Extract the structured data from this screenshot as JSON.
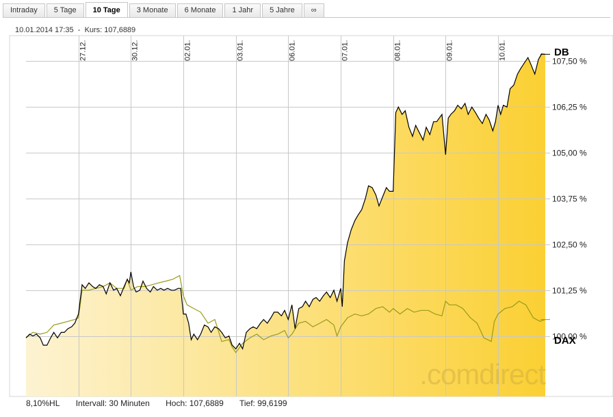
{
  "tabs": [
    {
      "label": "Intraday",
      "active": false
    },
    {
      "label": "5 Tage",
      "active": false
    },
    {
      "label": "10 Tage",
      "active": true
    },
    {
      "label": "3 Monate",
      "active": false
    },
    {
      "label": "6 Monate",
      "active": false
    },
    {
      "label": "1 Jahr",
      "active": false
    },
    {
      "label": "5 Jahre",
      "active": false
    },
    {
      "label": "∞",
      "active": false
    }
  ],
  "info": {
    "datetime": "10.01.2014 17:35",
    "separator": "-",
    "price": "Kurs: 107,6889"
  },
  "footer": {
    "hl": "8,10%HL",
    "interval": "Intervall: 30 Minuten",
    "high": "Hoch: 107,6889",
    "low": "Tief: 99,6199"
  },
  "watermark": ".comdirect",
  "colors": {
    "db_line": "#000000",
    "dax_line": "#9a9a1a",
    "fill_light": "#fdf3d2",
    "fill_dark": "#fbd033",
    "grid": "#c8c8c8"
  },
  "chart_data": {
    "type": "area",
    "title": "",
    "xlabel": "",
    "ylabel": "",
    "ylim": [
      98.35,
      108.2
    ],
    "yticks": [
      100.0,
      101.25,
      102.5,
      103.75,
      105.0,
      106.25,
      107.5
    ],
    "ytick_labels": [
      "100,00 %",
      "101,25 %",
      "102,50 %",
      "103,75 %",
      "105,00 %",
      "106,25 %",
      "107,50 %"
    ],
    "x_categories": [
      "27.12.",
      "30.12.",
      "02.01.",
      "03.01.",
      "06.01.",
      "07.01.",
      "08.01.",
      "09.01.",
      "10.01."
    ],
    "x_range": [
      -1.0,
      8.9
    ],
    "series": [
      {
        "name": "DB",
        "x": [
          -1.0,
          -0.93,
          -0.87,
          -0.8,
          -0.73,
          -0.67,
          -0.6,
          -0.53,
          -0.47,
          -0.4,
          -0.33,
          -0.27,
          -0.2,
          -0.13,
          -0.07,
          0.0,
          0.07,
          0.13,
          0.2,
          0.27,
          0.33,
          0.4,
          0.47,
          0.53,
          0.6,
          0.67,
          0.73,
          0.8,
          0.87,
          0.93,
          0.97,
          1.0,
          1.05,
          1.1,
          1.17,
          1.23,
          1.3,
          1.37,
          1.43,
          1.5,
          1.57,
          1.63,
          1.7,
          1.77,
          1.83,
          1.9,
          1.95,
          2.0,
          2.05,
          2.1,
          2.15,
          2.2,
          2.27,
          2.33,
          2.4,
          2.47,
          2.53,
          2.6,
          2.67,
          2.73,
          2.8,
          2.87,
          2.93,
          3.0,
          3.07,
          3.13,
          3.2,
          3.27,
          3.33,
          3.4,
          3.47,
          3.53,
          3.6,
          3.67,
          3.73,
          3.8,
          3.87,
          3.93,
          4.0,
          4.07,
          4.13,
          4.2,
          4.27,
          4.33,
          4.4,
          4.47,
          4.53,
          4.6,
          4.67,
          4.73,
          4.8,
          4.87,
          4.93,
          5.0,
          5.03,
          5.07,
          5.13,
          5.2,
          5.27,
          5.33,
          5.4,
          5.47,
          5.53,
          5.6,
          5.67,
          5.73,
          5.8,
          5.87,
          5.93,
          6.0,
          6.05,
          6.1,
          6.17,
          6.23,
          6.3,
          6.37,
          6.43,
          6.5,
          6.57,
          6.63,
          6.7,
          6.77,
          6.83,
          6.93,
          7.0,
          7.05,
          7.1,
          7.17,
          7.23,
          7.3,
          7.37,
          7.43,
          7.5,
          7.57,
          7.63,
          7.7,
          7.77,
          7.83,
          7.9,
          7.95,
          8.0,
          8.05,
          8.1,
          8.17,
          8.23,
          8.3,
          8.37,
          8.43,
          8.5,
          8.57,
          8.63,
          8.7,
          8.77,
          8.83,
          8.9
        ],
        "values": [
          99.95,
          100.05,
          100.0,
          100.05,
          99.95,
          99.75,
          99.75,
          99.95,
          100.1,
          99.95,
          100.1,
          100.1,
          100.2,
          100.25,
          100.35,
          100.6,
          101.4,
          101.3,
          101.45,
          101.35,
          101.3,
          101.4,
          101.35,
          101.15,
          101.45,
          101.25,
          101.3,
          101.1,
          101.35,
          101.55,
          101.45,
          101.75,
          101.35,
          101.2,
          101.25,
          101.5,
          101.3,
          101.2,
          101.35,
          101.25,
          101.3,
          101.25,
          101.3,
          101.25,
          101.25,
          101.3,
          101.3,
          100.6,
          100.6,
          100.35,
          99.9,
          100.05,
          99.9,
          100.05,
          100.3,
          100.25,
          100.1,
          100.25,
          100.2,
          100.1,
          99.95,
          100.0,
          99.75,
          99.65,
          99.8,
          99.65,
          100.1,
          100.2,
          100.25,
          100.2,
          100.35,
          100.45,
          100.35,
          100.5,
          100.65,
          100.65,
          100.55,
          100.7,
          100.45,
          100.85,
          100.2,
          100.75,
          100.8,
          100.95,
          100.8,
          101.0,
          101.05,
          100.95,
          101.1,
          101.2,
          101.05,
          101.25,
          100.95,
          101.3,
          100.8,
          102.05,
          102.55,
          102.9,
          103.15,
          103.3,
          103.45,
          103.75,
          104.1,
          104.05,
          103.85,
          103.55,
          103.8,
          104.05,
          103.95,
          103.95,
          106.1,
          106.25,
          106.05,
          106.15,
          105.7,
          105.45,
          105.75,
          105.55,
          105.35,
          105.7,
          105.5,
          105.85,
          105.85,
          106.05,
          104.95,
          105.95,
          106.05,
          106.15,
          106.3,
          106.2,
          106.35,
          106.05,
          106.25,
          106.1,
          105.95,
          105.8,
          106.05,
          105.9,
          105.6,
          105.85,
          106.3,
          106.05,
          106.3,
          106.25,
          106.75,
          106.85,
          107.15,
          107.3,
          107.45,
          107.6,
          107.4,
          107.15,
          107.55,
          107.7,
          107.69
        ]
      },
      {
        "name": "DAX",
        "x": [
          -1.0,
          -0.87,
          -0.73,
          -0.6,
          -0.47,
          -0.33,
          -0.2,
          -0.07,
          0.0,
          0.07,
          0.2,
          0.33,
          0.47,
          0.6,
          0.73,
          0.87,
          0.93,
          1.0,
          1.13,
          1.27,
          1.4,
          1.53,
          1.67,
          1.8,
          1.93,
          2.0,
          2.07,
          2.2,
          2.33,
          2.47,
          2.6,
          2.73,
          2.87,
          2.93,
          3.0,
          3.13,
          3.27,
          3.4,
          3.53,
          3.67,
          3.8,
          3.93,
          4.0,
          4.07,
          4.2,
          4.33,
          4.47,
          4.6,
          4.73,
          4.87,
          4.93,
          5.0,
          5.13,
          5.27,
          5.4,
          5.53,
          5.67,
          5.8,
          5.93,
          6.0,
          6.13,
          6.27,
          6.4,
          6.53,
          6.67,
          6.8,
          6.93,
          7.0,
          7.07,
          7.2,
          7.33,
          7.47,
          7.6,
          7.73,
          7.87,
          7.93,
          8.0,
          8.13,
          8.27,
          8.4,
          8.53,
          8.67,
          8.8,
          8.9
        ],
        "values": [
          99.95,
          100.1,
          100.05,
          100.1,
          100.3,
          100.35,
          100.4,
          100.45,
          100.5,
          101.25,
          101.25,
          101.3,
          101.35,
          101.45,
          101.3,
          101.3,
          101.55,
          101.25,
          101.35,
          101.35,
          101.4,
          101.45,
          101.5,
          101.55,
          101.65,
          101.1,
          100.85,
          100.75,
          100.65,
          100.35,
          100.45,
          99.85,
          99.9,
          99.7,
          99.55,
          99.8,
          99.95,
          100.05,
          99.9,
          100.0,
          100.05,
          100.15,
          99.95,
          100.05,
          100.35,
          100.4,
          100.25,
          100.35,
          100.45,
          100.3,
          100.0,
          100.25,
          100.5,
          100.6,
          100.55,
          100.6,
          100.75,
          100.8,
          100.65,
          100.75,
          100.6,
          100.75,
          100.65,
          100.7,
          100.7,
          100.6,
          100.55,
          100.95,
          100.85,
          100.85,
          100.75,
          100.5,
          100.35,
          99.95,
          99.85,
          100.4,
          100.6,
          100.75,
          100.8,
          100.95,
          100.85,
          100.5,
          100.4,
          100.45
        ]
      }
    ]
  }
}
